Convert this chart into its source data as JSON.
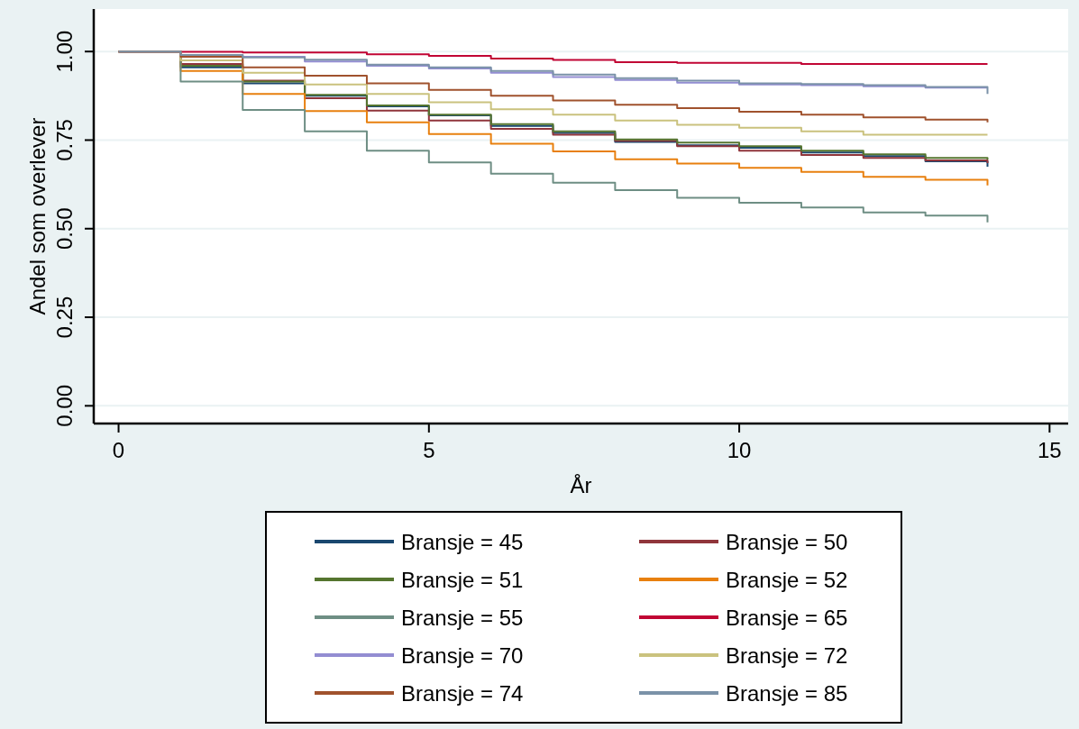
{
  "chart_data": {
    "type": "step",
    "xlabel": "År",
    "ylabel": "Andel som overlever",
    "x": [
      0,
      1,
      2,
      3,
      4,
      5,
      6,
      7,
      8,
      9,
      10,
      11,
      12,
      13,
      14
    ],
    "xlim": [
      -0.4,
      15.3
    ],
    "xticks": [
      0,
      5,
      10,
      15
    ],
    "ylim": [
      -0.05,
      1.12
    ],
    "yticks": [
      {
        "value": 0,
        "label": "0.00"
      },
      {
        "value": 0.25,
        "label": "0.25"
      },
      {
        "value": 0.5,
        "label": "0.50"
      },
      {
        "value": 0.75,
        "label": "0.75"
      },
      {
        "value": 1,
        "label": "1.00"
      }
    ],
    "grid": "y",
    "legend": "bottom",
    "line_style": "solid",
    "marker": "none",
    "series": [
      {
        "name": "Bransje = 45",
        "color": "#1a476f",
        "values": [
          1,
          0.955,
          0.91,
          0.875,
          0.845,
          0.82,
          0.79,
          0.77,
          0.745,
          0.735,
          0.728,
          0.715,
          0.705,
          0.69,
          0.675
        ]
      },
      {
        "name": "Bransje = 50",
        "color": "#90353b",
        "values": [
          1,
          0.965,
          0.918,
          0.868,
          0.833,
          0.805,
          0.782,
          0.765,
          0.748,
          0.733,
          0.72,
          0.708,
          0.7,
          0.693,
          0.685
        ]
      },
      {
        "name": "Bransje = 51",
        "color": "#55752f",
        "values": [
          1,
          0.96,
          0.915,
          0.878,
          0.848,
          0.822,
          0.795,
          0.775,
          0.752,
          0.743,
          0.733,
          0.72,
          0.71,
          0.7,
          0.695
        ]
      },
      {
        "name": "Bransje = 52",
        "color": "#e8800f",
        "values": [
          1,
          0.945,
          0.88,
          0.832,
          0.8,
          0.767,
          0.74,
          0.718,
          0.696,
          0.684,
          0.672,
          0.66,
          0.646,
          0.638,
          0.622
        ]
      },
      {
        "name": "Bransje = 55",
        "color": "#6e8e84",
        "values": [
          1,
          0.915,
          0.835,
          0.775,
          0.72,
          0.687,
          0.655,
          0.63,
          0.609,
          0.587,
          0.573,
          0.56,
          0.546,
          0.537,
          0.518
        ]
      },
      {
        "name": "Bransje = 65",
        "color": "#c10534",
        "values": [
          1,
          0.999,
          0.997,
          0.997,
          0.992,
          0.988,
          0.98,
          0.976,
          0.97,
          0.968,
          0.968,
          0.965,
          0.965,
          0.965,
          0.965
        ]
      },
      {
        "name": "Bransje = 70",
        "color": "#938dd2",
        "values": [
          1,
          0.99,
          0.985,
          0.972,
          0.96,
          0.952,
          0.94,
          0.928,
          0.92,
          0.912,
          0.907,
          0.905,
          0.902,
          0.898,
          0.898
        ]
      },
      {
        "name": "Bransje = 72",
        "color": "#cac27e",
        "values": [
          1,
          0.975,
          0.94,
          0.907,
          0.88,
          0.857,
          0.837,
          0.822,
          0.805,
          0.793,
          0.785,
          0.775,
          0.765,
          0.765,
          0.765
        ]
      },
      {
        "name": "Bransje = 74",
        "color": "#a0522d",
        "values": [
          1,
          0.985,
          0.955,
          0.932,
          0.91,
          0.892,
          0.875,
          0.862,
          0.85,
          0.84,
          0.83,
          0.822,
          0.814,
          0.808,
          0.8
        ]
      },
      {
        "name": "Bransje = 85",
        "color": "#7b92a8",
        "values": [
          1,
          0.99,
          0.983,
          0.977,
          0.963,
          0.955,
          0.945,
          0.935,
          0.925,
          0.918,
          0.91,
          0.908,
          0.905,
          0.9,
          0.88
        ]
      }
    ]
  }
}
